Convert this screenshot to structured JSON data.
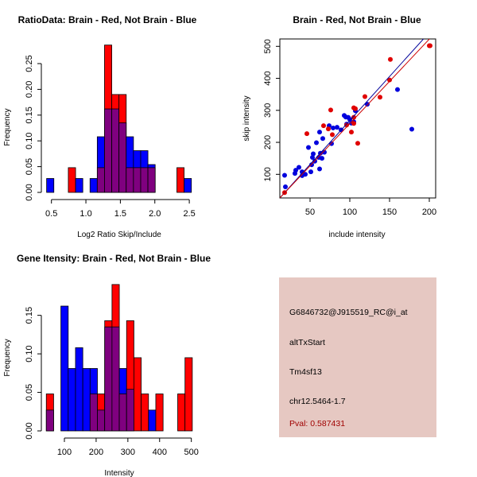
{
  "colors": {
    "brain": "#ff0000",
    "not_brain": "#0000ff",
    "overlap": "#7f007f",
    "info_bg": "#e6c8c2",
    "pval": "#a00000"
  },
  "chart_data": [
    {
      "type": "bar",
      "id": "ratio",
      "title": "RatioData: Brain - Red, Not Brain - Blue",
      "xlabel": "Log2 Ratio Skip/Include",
      "ylabel": "Frequency",
      "bin_start": 0.43,
      "bin_width": 0.105,
      "xticks": [
        "0.5",
        "1.0",
        "1.5",
        "2.0",
        "2.5"
      ],
      "xtick_values": [
        0.5,
        1.0,
        1.5,
        2.0,
        2.5
      ],
      "yticks": [
        "0.00",
        "0.05",
        "0.10",
        "0.15",
        "0.20",
        "0.25"
      ],
      "ytick_values": [
        0,
        0.05,
        0.1,
        0.15,
        0.2,
        0.25
      ],
      "series": [
        {
          "name": "Brain",
          "color": "red",
          "values": [
            0,
            0,
            0,
            0.048,
            0,
            0,
            0,
            0.048,
            0.286,
            0.19,
            0.19,
            0.048,
            0.048,
            0.048,
            0.048,
            0,
            0,
            0,
            0.048,
            0
          ]
        },
        {
          "name": "Not Brain",
          "color": "blue",
          "values": [
            0.027,
            0,
            0,
            0,
            0.027,
            0,
            0.027,
            0.108,
            0.162,
            0.162,
            0.135,
            0.108,
            0.081,
            0.081,
            0.054,
            0,
            0,
            0,
            0,
            0.027
          ]
        }
      ]
    },
    {
      "type": "scatter",
      "id": "scatter",
      "title": "Brain - Red, Not Brain - Blue",
      "xlabel": "include intensity",
      "ylabel": "skip intensity",
      "xlim": [
        11.7,
        208
      ],
      "ylim": [
        25.5,
        522
      ],
      "xticks": [
        "50",
        "100",
        "150",
        "200"
      ],
      "xtick_values": [
        50,
        100,
        150,
        200
      ],
      "yticks": [
        "100",
        "200",
        "300",
        "400",
        "500"
      ],
      "ytick_values": [
        100,
        200,
        300,
        400,
        500
      ],
      "series": [
        {
          "name": "Not Brain",
          "color": "blue",
          "fit": {
            "slope": 2.75,
            "intercept": -6.7
          },
          "points": [
            [
              18,
              97
            ],
            [
              19,
              61
            ],
            [
              31,
              103
            ],
            [
              32,
              113
            ],
            [
              36,
              122
            ],
            [
              40,
              108
            ],
            [
              40,
              96
            ],
            [
              44,
              100
            ],
            [
              48,
              184
            ],
            [
              51,
              108
            ],
            [
              52,
              130
            ],
            [
              53,
              153
            ],
            [
              54,
              164
            ],
            [
              56,
              141
            ],
            [
              58,
              199
            ],
            [
              62,
              232
            ],
            [
              62,
              117
            ],
            [
              61,
              153
            ],
            [
              63,
              166
            ],
            [
              65,
              150
            ],
            [
              66,
              212
            ],
            [
              68,
              169
            ],
            [
              74,
              252
            ],
            [
              77,
              196
            ],
            [
              79,
              245
            ],
            [
              84,
              247
            ],
            [
              89,
              239
            ],
            [
              93,
              284
            ],
            [
              95,
              279
            ],
            [
              96,
              257
            ],
            [
              98,
              278
            ],
            [
              100,
              272
            ],
            [
              102,
              260
            ],
            [
              105,
              264
            ],
            [
              107,
              299
            ],
            [
              122,
              319
            ],
            [
              160,
              365
            ],
            [
              178,
              241
            ]
          ]
        },
        {
          "name": "Brain",
          "color": "red",
          "fit": {
            "slope": 2.64,
            "intercept": -5.4
          },
          "points": [
            [
              18,
              43
            ],
            [
              46,
              227
            ],
            [
              67,
              252
            ],
            [
              73,
              242
            ],
            [
              76,
              301
            ],
            [
              78,
              224
            ],
            [
              96,
              254
            ],
            [
              102,
              232
            ],
            [
              110,
              197
            ],
            [
              105,
              278
            ],
            [
              105,
              308
            ],
            [
              107,
              305
            ],
            [
              105,
              259
            ],
            [
              119,
              343
            ],
            [
              138,
              341
            ],
            [
              151,
              459
            ],
            [
              150,
              395
            ],
            [
              201,
              502
            ],
            [
              200,
              502
            ]
          ]
        }
      ]
    },
    {
      "type": "bar",
      "id": "intensity",
      "title": "Gene Itensity: Brain - Red, Not Brain - Blue",
      "xlabel": "Intensity",
      "ylabel": "Frequency",
      "bin_start": 43,
      "bin_width": 23,
      "xticks": [
        "100",
        "200",
        "300",
        "400",
        "500"
      ],
      "xtick_values": [
        100,
        200,
        300,
        400,
        500
      ],
      "yticks": [
        "0.00",
        "0.05",
        "0.10",
        "0.15"
      ],
      "ytick_values": [
        0,
        0.05,
        0.1,
        0.15
      ],
      "series": [
        {
          "name": "Brain",
          "color": "red",
          "values": [
            0.048,
            0,
            0,
            0,
            0,
            0,
            0.048,
            0.048,
            0.143,
            0.19,
            0.048,
            0.143,
            0.095,
            0.048,
            0,
            0.048,
            0,
            0,
            0.048,
            0.095
          ]
        },
        {
          "name": "Not Brain",
          "color": "blue",
          "values": [
            0.027,
            0,
            0.162,
            0.081,
            0.108,
            0.081,
            0.081,
            0.027,
            0.135,
            0.135,
            0.081,
            0.054,
            0,
            0,
            0.027,
            0,
            0,
            0,
            0,
            0
          ]
        }
      ]
    }
  ],
  "info": {
    "probe_id": "G6846732@J915519_RC@i_at",
    "event_type": "altTxStart",
    "gene": "Tm4sf13",
    "location": "chr12.5464-1.7",
    "pval": "Pval: 0.587431"
  }
}
